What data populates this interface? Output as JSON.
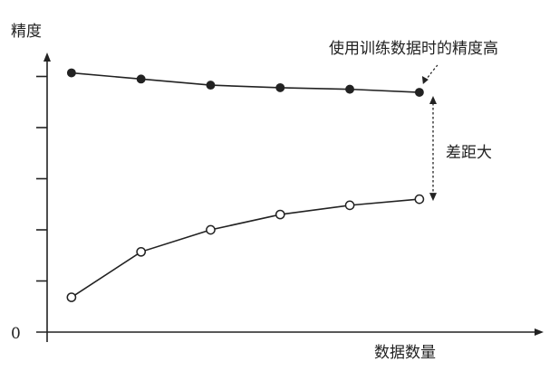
{
  "chart_data": {
    "type": "line",
    "ylabel": "精度",
    "xlabel": "数据数量",
    "origin_label": "0",
    "x": [
      1,
      2,
      3,
      4,
      5,
      6
    ],
    "xlim": [
      0.65,
      7.2
    ],
    "ylim": [
      0,
      6
    ],
    "y_ticks": [
      1,
      2,
      3,
      4,
      5
    ],
    "series": [
      {
        "name": "",
        "marker": "filled",
        "color": "#222222",
        "values": [
          5.07,
          4.95,
          4.83,
          4.78,
          4.75,
          4.69
        ]
      },
      {
        "name": "",
        "marker": "hollow",
        "color": "#222222",
        "values": [
          0.68,
          1.57,
          2.0,
          2.3,
          2.48,
          2.6
        ]
      }
    ],
    "annotations": {
      "high_label": "使用训练数据时的精度高",
      "gap_label": "差距大"
    }
  }
}
